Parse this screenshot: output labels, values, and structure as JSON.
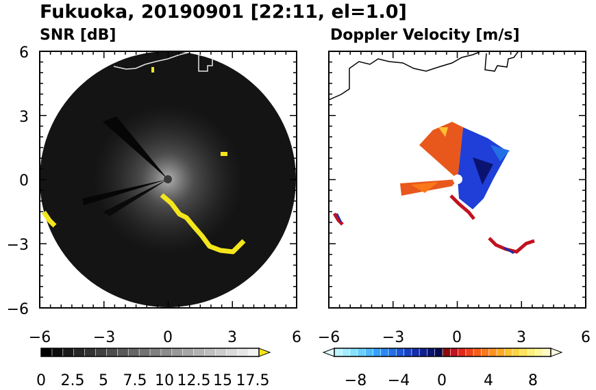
{
  "figure": {
    "title": "Fukuoka, 20190901 [22:11, el=1.0]"
  },
  "colors": {
    "snr_background": "#141414",
    "snr_highlight": "#f4e61c",
    "coastline_on_dark": "#e6e6e6",
    "coastline_on_light": "#000000",
    "receding": "#e8581c",
    "approaching": "#1f3fd8",
    "clutter_red": "#c1121f"
  },
  "chart_data": [
    {
      "type": "heatmap",
      "panel": "snr",
      "title": "SNR [dB]",
      "xlim": [
        -6,
        6
      ],
      "ylim": [
        -6,
        6
      ],
      "xticks": [
        "−6",
        "−3",
        "0",
        "3",
        "6"
      ],
      "yticks": [
        "6",
        "3",
        "0",
        "−3",
        "−6"
      ],
      "colorbar": {
        "min": 0,
        "max": 17.5,
        "extend": "max",
        "tick_labels": [
          "0",
          "2.5",
          "5",
          "7.5",
          "10",
          "12.5",
          "15",
          "17.5"
        ],
        "colors": [
          "#000000",
          "#0d0d0d",
          "#1a1a1a",
          "#272727",
          "#333333",
          "#404040",
          "#4d4d4d",
          "#5a5a5a",
          "#666666",
          "#737373",
          "#808080",
          "#8c8c8c",
          "#999999",
          "#a6a6a6",
          "#b3b3b3",
          "#bfbfbf",
          "#cccccc",
          "#d9d9d9",
          "#e6e6e6",
          "#f2f2f2"
        ],
        "extend_color": "#f4e61c"
      }
    },
    {
      "type": "heatmap",
      "panel": "doppler",
      "title": "Doppler Velocity [m/s]",
      "xlim": [
        -6,
        6
      ],
      "ylim": [
        -6,
        6
      ],
      "xticks": [
        "−6",
        "−3",
        "0",
        "3",
        "6"
      ],
      "yticks": [],
      "colorbar": {
        "min": -10,
        "max": 10,
        "extend": "both",
        "tick_labels": [
          "−8",
          "−4",
          "0",
          "4",
          "8"
        ],
        "colors": [
          "#bff4ff",
          "#a3ecff",
          "#86e0ff",
          "#69cfff",
          "#4dbaff",
          "#35a1ff",
          "#2a88f5",
          "#2370e6",
          "#1c58d6",
          "#1842c4",
          "#142eae",
          "#0f1f8f",
          "#0a1370",
          "#06094f",
          "#8e0a0a",
          "#c1121f",
          "#e2271d",
          "#f0421a",
          "#f65e19",
          "#fa781a",
          "#fc921e",
          "#fdaa26",
          "#fec132",
          "#fed441",
          "#fee45a",
          "#fff07a",
          "#fff7a0",
          "#fffbc4"
        ],
        "extend_low": "#dff9ff",
        "extend_high": "#fffde0"
      }
    }
  ]
}
